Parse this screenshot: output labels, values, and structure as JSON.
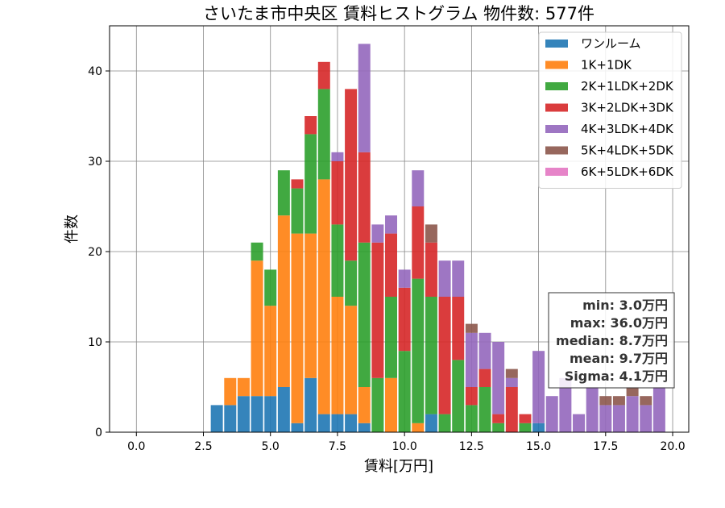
{
  "chart_data": {
    "type": "bar",
    "stacked": true,
    "title": "さいたま市中央区 賃料ヒストグラム 物件数: 577件",
    "xlabel": "賃料[万円]",
    "ylabel": "件数",
    "xlim": [
      -1.0,
      20.6
    ],
    "ylim": [
      0,
      45
    ],
    "xticks": [
      0.0,
      2.5,
      5.0,
      7.5,
      10.0,
      12.5,
      15.0,
      17.5,
      20.0
    ],
    "xtick_labels": [
      "0.0",
      "2.5",
      "5.0",
      "7.5",
      "10.0",
      "12.5",
      "15.0",
      "17.5",
      "20.0"
    ],
    "yticks": [
      0,
      10,
      20,
      30,
      40
    ],
    "ytick_labels": [
      "0",
      "10",
      "20",
      "30",
      "40"
    ],
    "grid": true,
    "legend_position": "top-right",
    "bin_width": 0.5,
    "x": [
      3.0,
      3.5,
      4.0,
      4.5,
      5.0,
      5.5,
      6.0,
      6.5,
      7.0,
      7.5,
      8.0,
      8.5,
      9.0,
      9.5,
      10.0,
      10.5,
      11.0,
      11.5,
      12.0,
      12.5,
      13.0,
      13.5,
      14.0,
      14.5,
      15.0,
      15.5,
      16.0,
      16.5,
      17.0,
      17.5,
      18.0,
      18.5,
      19.0,
      19.5
    ],
    "series": [
      {
        "name": "ワンルーム",
        "color": "#1f77b4",
        "values": [
          3,
          3,
          4,
          4,
          4,
          5,
          1,
          6,
          2,
          2,
          2,
          1,
          0,
          0,
          0,
          0,
          2,
          0,
          0,
          0,
          0,
          0,
          0,
          0,
          1,
          0,
          0,
          0,
          0,
          0,
          0,
          0,
          0,
          0
        ]
      },
      {
        "name": "1K+1DK",
        "color": "#ff7f0e",
        "values": [
          0,
          3,
          2,
          15,
          10,
          19,
          21,
          16,
          26,
          13,
          12,
          4,
          0,
          6,
          0,
          1,
          0,
          0,
          0,
          0,
          0,
          0,
          0,
          0,
          0,
          0,
          0,
          0,
          0,
          0,
          0,
          0,
          0,
          0
        ]
      },
      {
        "name": "2K+1LDK+2DK",
        "color": "#2ca02c",
        "values": [
          0,
          0,
          0,
          2,
          4,
          5,
          5,
          11,
          10,
          8,
          5,
          16,
          6,
          9,
          9,
          16,
          13,
          2,
          8,
          3,
          5,
          1,
          0,
          1,
          0,
          0,
          0,
          0,
          0,
          0,
          0,
          0,
          0,
          0
        ]
      },
      {
        "name": "3K+2LDK+3DK",
        "color": "#d62728",
        "values": [
          0,
          0,
          0,
          0,
          0,
          0,
          1,
          2,
          3,
          7,
          19,
          10,
          15,
          7,
          7,
          8,
          6,
          13,
          7,
          2,
          2,
          1,
          5,
          1,
          0,
          0,
          0,
          0,
          0,
          0,
          0,
          0,
          0,
          0
        ]
      },
      {
        "name": "4K+3LDK+4DK",
        "color": "#9467bd",
        "values": [
          0,
          0,
          0,
          0,
          0,
          0,
          0,
          0,
          0,
          1,
          0,
          12,
          2,
          2,
          2,
          4,
          0,
          4,
          4,
          6,
          4,
          8,
          1,
          0,
          8,
          4,
          6,
          2,
          5,
          3,
          3,
          4,
          3,
          5
        ]
      },
      {
        "name": "5K+4LDK+5DK",
        "color": "#8c564b",
        "values": [
          0,
          0,
          0,
          0,
          0,
          0,
          0,
          0,
          0,
          0,
          0,
          0,
          0,
          0,
          0,
          0,
          2,
          0,
          0,
          1,
          0,
          0,
          1,
          0,
          0,
          0,
          0,
          0,
          0,
          1,
          1,
          1,
          1,
          0
        ]
      },
      {
        "name": "6K+5LDK+6DK",
        "color": "#e377c2",
        "values": [
          0,
          0,
          0,
          0,
          0,
          0,
          0,
          0,
          0,
          0,
          0,
          0,
          0,
          0,
          0,
          0,
          0,
          0,
          0,
          0,
          0,
          0,
          0,
          0,
          0,
          0,
          0,
          0,
          0,
          0,
          0,
          0,
          0,
          0
        ]
      }
    ],
    "stats_box": {
      "min": "min: 3.0万円",
      "max": "max: 36.0万円",
      "median": "median: 8.7万円",
      "mean": "mean: 9.7万円",
      "sigma": "Sigma: 4.1万円"
    }
  }
}
